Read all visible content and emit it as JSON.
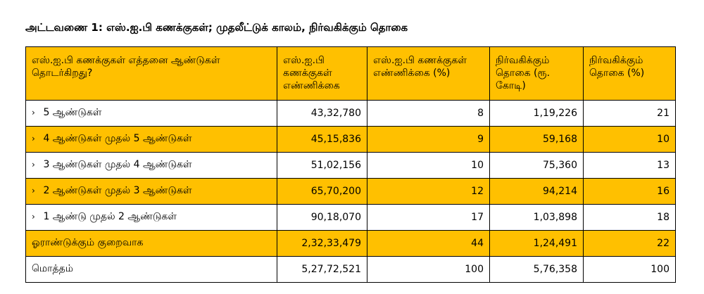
{
  "title": "அட்டவணை 1: எஸ்.ஐ.பி கணக்குகள்; முதலீட்டுக் காலம், நிர்வகிக்கும் தொகை",
  "headers": [
    "எஸ்.ஐ.பி கணக்குகள் எத்தனை ஆண்டுகள் தொடர்கிறது?",
    "எஸ்.ஐ.பி கணக்குகள் எண்ணிக்கை",
    "எஸ்.ஐ.பி கணக்குகள் எண்ணிக்கை (%)",
    "நிர்வகிக்கும் தொகை (ரூ. கோடி)",
    "நிர்வகிக்கும் தொகை (%)"
  ],
  "bullet_marker": "›",
  "rows": [
    {
      "label": "5 ஆண்டுகள்",
      "accounts": "43,32,780",
      "accounts_pct": "8",
      "aum": "1,19,226",
      "aum_pct": "21"
    },
    {
      "label": "4  ஆண்டுகள் முதல் 5 ஆண்டுகள்",
      "accounts": "45,15,836",
      "accounts_pct": "9",
      "aum": "59,168",
      "aum_pct": "10"
    },
    {
      "label": "3 ஆண்டுகள் முதல் 4 ஆண்டுகள்",
      "accounts": "51,02,156",
      "accounts_pct": "10",
      "aum": "75,360",
      "aum_pct": "13"
    },
    {
      "label": "2 ஆண்டுகள் முதல் 3 ஆண்டுகள்",
      "accounts": "65,70,200",
      "accounts_pct": "12",
      "aum": "94,214",
      "aum_pct": "16"
    },
    {
      "label": "1 ஆண்டு முதல் 2 ஆண்டுகள்",
      "accounts": "90,18,070",
      "accounts_pct": "17",
      "aum": "1,03,898",
      "aum_pct": "18"
    },
    {
      "label": "ஓராண்டுக்கும் குறைவாக",
      "accounts": "2,32,33,479",
      "accounts_pct": "44",
      "aum": "1,24,491",
      "aum_pct": "22"
    },
    {
      "label": "மொத்தம்",
      "accounts": "5,27,72,521",
      "accounts_pct": "100",
      "aum": "5,76,358",
      "aum_pct": "100"
    }
  ]
}
